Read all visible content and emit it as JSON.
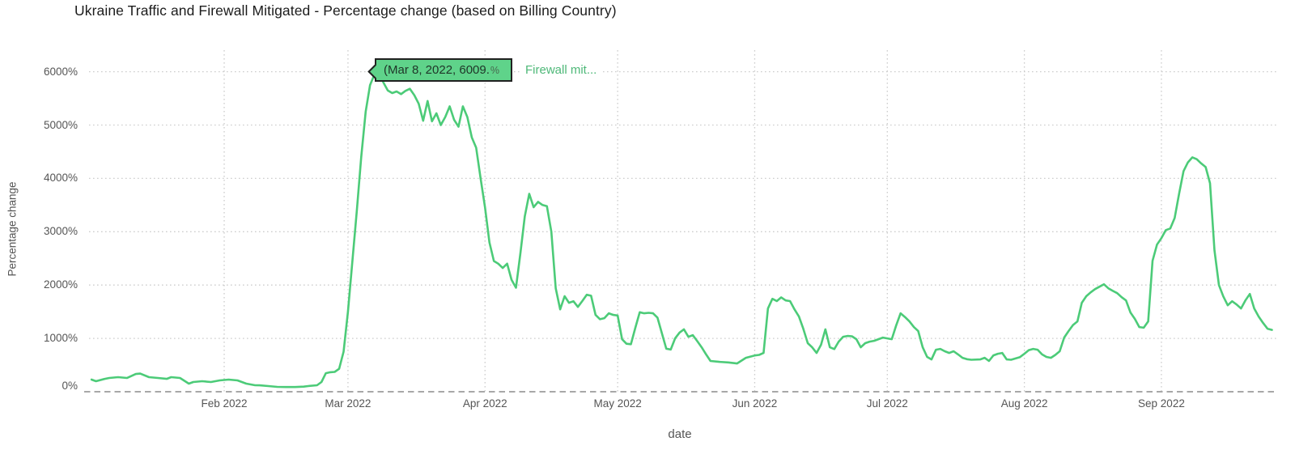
{
  "title": "Ukraine Traffic and Firewall Mitigated - Percentage change (based on Billing Country)",
  "axes": {
    "y_label": "Percentage change",
    "x_label": "date"
  },
  "tooltip": {
    "text": "(Mar 8, 2022, 6009.",
    "suffix": "%",
    "anchor_date": "Mar 8",
    "anchor_value": 6009
  },
  "series_label": "Firewall mit...",
  "colors": {
    "line": "#4ccb78",
    "tooltip_bg": "#5fd38a",
    "series_label_text": "#4eb878",
    "grid": "#cdcdcd",
    "zero_line": "#a8a8a8",
    "tick_text": "#555555",
    "title_text": "#1c1c1c"
  },
  "chart_data": {
    "type": "line",
    "title": "Ukraine Traffic and Firewall Mitigated - Percentage change (based on Billing Country)",
    "xlabel": "date",
    "ylabel": "Percentage change",
    "ylim": [
      0,
      6400
    ],
    "x_range": [
      "Jan 2 2022",
      "Sep 26 2022"
    ],
    "grid": "dotted",
    "legend_position": "none",
    "yticks": [
      {
        "label": "0%",
        "value": 0
      },
      {
        "label": "1000%",
        "value": 1000
      },
      {
        "label": "2000%",
        "value": 2000
      },
      {
        "label": "3000%",
        "value": 3000
      },
      {
        "label": "4000%",
        "value": 4000
      },
      {
        "label": "5000%",
        "value": 5000
      },
      {
        "label": "6000%",
        "value": 6000
      }
    ],
    "xticks": [
      {
        "label": "Feb 2022",
        "date": "Feb 1"
      },
      {
        "label": "Mar 2022",
        "date": "Mar 1"
      },
      {
        "label": "Apr 2022",
        "date": "Apr 1"
      },
      {
        "label": "May 2022",
        "date": "May 1"
      },
      {
        "label": "Jun 2022",
        "date": "Jun 1"
      },
      {
        "label": "Jul 2022",
        "date": "Jul 1"
      },
      {
        "label": "Aug 2022",
        "date": "Aug 1"
      },
      {
        "label": "Sep 2022",
        "date": "Sep 1"
      }
    ],
    "annotation": {
      "date": "Mar 8",
      "value": 6009,
      "label": "(Mar 8, 2022, 6009.%"
    },
    "series": [
      {
        "name": "Firewall mit...",
        "points": [
          [
            "Jan 2",
            227
          ],
          [
            "Jan 3",
            197
          ],
          [
            "Jan 5",
            242
          ],
          [
            "Jan 6",
            258
          ],
          [
            "Jan 8",
            273
          ],
          [
            "Jan 10",
            258
          ],
          [
            "Jan 12",
            333
          ],
          [
            "Jan 13",
            340
          ],
          [
            "Jan 15",
            273
          ],
          [
            "Jan 17",
            258
          ],
          [
            "Jan 19",
            242
          ],
          [
            "Jan 20",
            273
          ],
          [
            "Jan 22",
            258
          ],
          [
            "Jan 24",
            152
          ],
          [
            "Jan 25",
            182
          ],
          [
            "Jan 27",
            197
          ],
          [
            "Jan 29",
            182
          ],
          [
            "Jan 31",
            212
          ],
          [
            "Feb 2",
            227
          ],
          [
            "Feb 4",
            212
          ],
          [
            "Feb 6",
            152
          ],
          [
            "Feb 8",
            121
          ],
          [
            "Feb 9",
            120
          ],
          [
            "Feb 11",
            106
          ],
          [
            "Feb 13",
            91
          ],
          [
            "Feb 15",
            88
          ],
          [
            "Feb 17",
            88
          ],
          [
            "Feb 19",
            95
          ],
          [
            "Feb 20",
            106
          ],
          [
            "Feb 22",
            121
          ],
          [
            "Feb 23",
            182
          ],
          [
            "Feb 24",
            348
          ],
          [
            "Feb 25",
            365
          ],
          [
            "Feb 26",
            372
          ],
          [
            "Feb 27",
            430
          ],
          [
            "Feb 28",
            750
          ],
          [
            "Mar 1",
            1500
          ],
          [
            "Mar 2",
            2450
          ],
          [
            "Mar 3",
            3400
          ],
          [
            "Mar 4",
            4400
          ],
          [
            "Mar 5",
            5250
          ],
          [
            "Mar 6",
            5750
          ],
          [
            "Mar 7",
            5950
          ],
          [
            "Mar 8",
            6009
          ],
          [
            "Mar 9",
            5800
          ],
          [
            "Mar 10",
            5650
          ],
          [
            "Mar 11",
            5600
          ],
          [
            "Mar 12",
            5630
          ],
          [
            "Mar 13",
            5580
          ],
          [
            "Mar 14",
            5640
          ],
          [
            "Mar 15",
            5680
          ],
          [
            "Mar 16",
            5560
          ],
          [
            "Mar 17",
            5400
          ],
          [
            "Mar 18",
            5080
          ],
          [
            "Mar 19",
            5450
          ],
          [
            "Mar 20",
            5070
          ],
          [
            "Mar 21",
            5220
          ],
          [
            "Mar 22",
            5000
          ],
          [
            "Mar 23",
            5150
          ],
          [
            "Mar 24",
            5350
          ],
          [
            "Mar 25",
            5100
          ],
          [
            "Mar 26",
            4970
          ],
          [
            "Mar 27",
            5350
          ],
          [
            "Mar 28",
            5150
          ],
          [
            "Mar 29",
            4770
          ],
          [
            "Mar 30",
            4575
          ],
          [
            "Mar 31",
            4000
          ],
          [
            "Apr 1",
            3450
          ],
          [
            "Apr 2",
            2800
          ],
          [
            "Apr 3",
            2450
          ],
          [
            "Apr 4",
            2400
          ],
          [
            "Apr 5",
            2320
          ],
          [
            "Apr 6",
            2400
          ],
          [
            "Apr 7",
            2100
          ],
          [
            "Apr 8",
            1950
          ],
          [
            "Apr 9",
            2600
          ],
          [
            "Apr 10",
            3290
          ],
          [
            "Apr 11",
            3710
          ],
          [
            "Apr 12",
            3460
          ],
          [
            "Apr 13",
            3560
          ],
          [
            "Apr 14",
            3500
          ],
          [
            "Apr 15",
            3480
          ],
          [
            "Apr 16",
            3000
          ],
          [
            "Apr 17",
            1940
          ],
          [
            "Apr 18",
            1545
          ],
          [
            "Apr 19",
            1790
          ],
          [
            "Apr 20",
            1667
          ],
          [
            "Apr 21",
            1697
          ],
          [
            "Apr 22",
            1590
          ],
          [
            "Apr 23",
            1700
          ],
          [
            "Apr 24",
            1818
          ],
          [
            "Apr 25",
            1800
          ],
          [
            "Apr 26",
            1440
          ],
          [
            "Apr 27",
            1360
          ],
          [
            "Apr 28",
            1380
          ],
          [
            "Apr 29",
            1470
          ],
          [
            "Apr 30",
            1440
          ],
          [
            "May 1",
            1430
          ],
          [
            "May 2",
            985
          ],
          [
            "May 3",
            900
          ],
          [
            "May 4",
            890
          ],
          [
            "May 5",
            1200
          ],
          [
            "May 6",
            1490
          ],
          [
            "May 7",
            1470
          ],
          [
            "May 8",
            1480
          ],
          [
            "May 9",
            1470
          ],
          [
            "May 10",
            1390
          ],
          [
            "May 11",
            1100
          ],
          [
            "May 12",
            808
          ],
          [
            "May 13",
            790
          ],
          [
            "May 14",
            1000
          ],
          [
            "May 15",
            1110
          ],
          [
            "May 16",
            1170
          ],
          [
            "May 17",
            1030
          ],
          [
            "May 18",
            1060
          ],
          [
            "May 19",
            950
          ],
          [
            "May 20",
            833
          ],
          [
            "May 21",
            700
          ],
          [
            "May 22",
            576
          ],
          [
            "May 24",
            560
          ],
          [
            "May 26",
            550
          ],
          [
            "May 28",
            530
          ],
          [
            "May 30",
            636
          ],
          [
            "Jun 1",
            680
          ],
          [
            "Jun 2",
            690
          ],
          [
            "Jun 3",
            727
          ],
          [
            "Jun 4",
            1560
          ],
          [
            "Jun 5",
            1742
          ],
          [
            "Jun 6",
            1700
          ],
          [
            "Jun 7",
            1770
          ],
          [
            "Jun 8",
            1712
          ],
          [
            "Jun 9",
            1700
          ],
          [
            "Jun 10",
            1545
          ],
          [
            "Jun 11",
            1410
          ],
          [
            "Jun 12",
            1180
          ],
          [
            "Jun 13",
            910
          ],
          [
            "Jun 14",
            833
          ],
          [
            "Jun 15",
            727
          ],
          [
            "Jun 16",
            880
          ],
          [
            "Jun 17",
            1170
          ],
          [
            "Jun 18",
            833
          ],
          [
            "Jun 19",
            800
          ],
          [
            "Jun 20",
            940
          ],
          [
            "Jun 21",
            1030
          ],
          [
            "Jun 22",
            1045
          ],
          [
            "Jun 23",
            1040
          ],
          [
            "Jun 24",
            985
          ],
          [
            "Jun 25",
            833
          ],
          [
            "Jun 26",
            910
          ],
          [
            "Jun 27",
            940
          ],
          [
            "Jun 28",
            955
          ],
          [
            "Jun 30",
            1015
          ],
          [
            "Jul 1",
            1000
          ],
          [
            "Jul 2",
            985
          ],
          [
            "Jul 3",
            1242
          ],
          [
            "Jul 4",
            1470
          ],
          [
            "Jul 5",
            1400
          ],
          [
            "Jul 6",
            1318
          ],
          [
            "Jul 7",
            1212
          ],
          [
            "Jul 8",
            1136
          ],
          [
            "Jul 9",
            833
          ],
          [
            "Jul 10",
            652
          ],
          [
            "Jul 11",
            606
          ],
          [
            "Jul 12",
            788
          ],
          [
            "Jul 13",
            803
          ],
          [
            "Jul 14",
            758
          ],
          [
            "Jul 15",
            727
          ],
          [
            "Jul 16",
            758
          ],
          [
            "Jul 17",
            700
          ],
          [
            "Jul 18",
            636
          ],
          [
            "Jul 19",
            610
          ],
          [
            "Jul 20",
            600
          ],
          [
            "Jul 22",
            606
          ],
          [
            "Jul 23",
            636
          ],
          [
            "Jul 24",
            576
          ],
          [
            "Jul 25",
            682
          ],
          [
            "Jul 26",
            712
          ],
          [
            "Jul 27",
            727
          ],
          [
            "Jul 28",
            606
          ],
          [
            "Jul 29",
            600
          ],
          [
            "Jul 31",
            650
          ],
          [
            "Aug 1",
            712
          ],
          [
            "Aug 2",
            780
          ],
          [
            "Aug 3",
            803
          ],
          [
            "Aug 4",
            788
          ],
          [
            "Aug 5",
            700
          ],
          [
            "Aug 6",
            652
          ],
          [
            "Aug 7",
            636
          ],
          [
            "Aug 8",
            690
          ],
          [
            "Aug 9",
            758
          ],
          [
            "Aug 10",
            1015
          ],
          [
            "Aug 11",
            1136
          ],
          [
            "Aug 12",
            1250
          ],
          [
            "Aug 13",
            1318
          ],
          [
            "Aug 14",
            1667
          ],
          [
            "Aug 15",
            1790
          ],
          [
            "Aug 16",
            1864
          ],
          [
            "Aug 17",
            1924
          ],
          [
            "Aug 18",
            1970
          ],
          [
            "Aug 19",
            2015
          ],
          [
            "Aug 20",
            1940
          ],
          [
            "Aug 21",
            1890
          ],
          [
            "Aug 22",
            1848
          ],
          [
            "Aug 23",
            1773
          ],
          [
            "Aug 24",
            1712
          ],
          [
            "Aug 25",
            1485
          ],
          [
            "Aug 26",
            1364
          ],
          [
            "Aug 27",
            1212
          ],
          [
            "Aug 28",
            1200
          ],
          [
            "Aug 29",
            1318
          ],
          [
            "Aug 30",
            2455
          ],
          [
            "Aug 31",
            2758
          ],
          [
            "Sep 1",
            2879
          ],
          [
            "Sep 2",
            3030
          ],
          [
            "Sep 3",
            3060
          ],
          [
            "Sep 4",
            3257
          ],
          [
            "Sep 5",
            3712
          ],
          [
            "Sep 6",
            4136
          ],
          [
            "Sep 7",
            4300
          ],
          [
            "Sep 8",
            4394
          ],
          [
            "Sep 9",
            4360
          ],
          [
            "Sep 10",
            4280
          ],
          [
            "Sep 11",
            4212
          ],
          [
            "Sep 12",
            3909
          ],
          [
            "Sep 13",
            2652
          ],
          [
            "Sep 14",
            2000
          ],
          [
            "Sep 15",
            1788
          ],
          [
            "Sep 16",
            1621
          ],
          [
            "Sep 17",
            1697
          ],
          [
            "Sep 18",
            1636
          ],
          [
            "Sep 19",
            1561
          ],
          [
            "Sep 20",
            1712
          ],
          [
            "Sep 21",
            1833
          ],
          [
            "Sep 22",
            1561
          ],
          [
            "Sep 23",
            1409
          ],
          [
            "Sep 24",
            1288
          ],
          [
            "Sep 25",
            1182
          ],
          [
            "Sep 26",
            1160
          ]
        ]
      }
    ]
  }
}
